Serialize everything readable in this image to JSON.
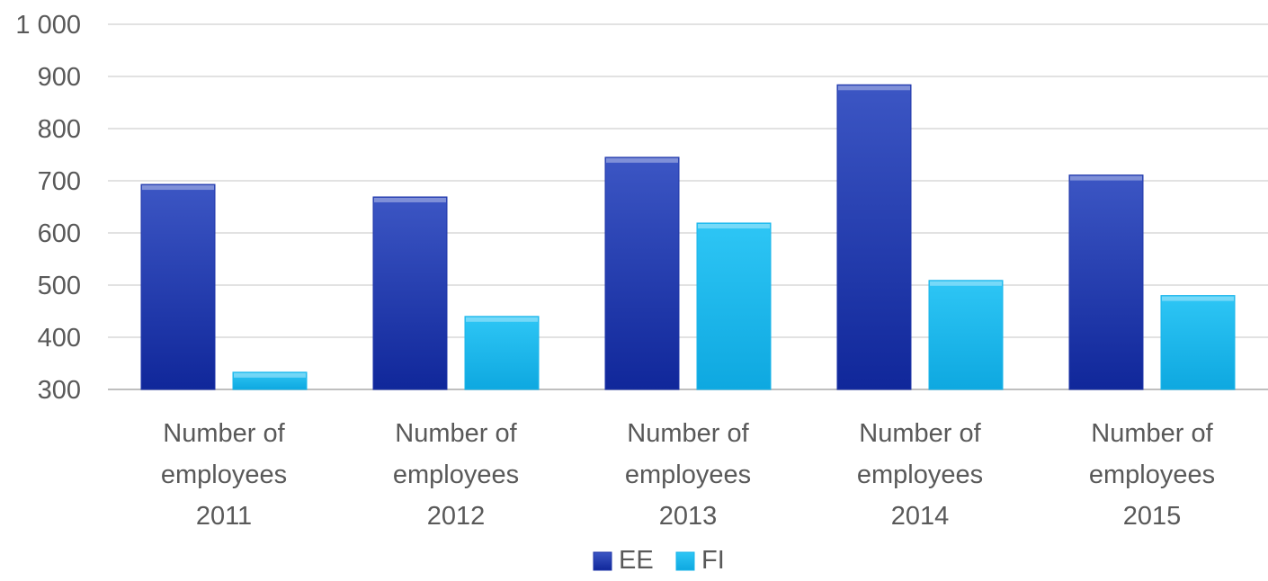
{
  "chart_data": {
    "type": "bar",
    "title": "",
    "xlabel": "",
    "ylabel": "",
    "categories": [
      [
        "Number of",
        "employees",
        "2011"
      ],
      [
        "Number of",
        "employees",
        "2012"
      ],
      [
        "Number of",
        "employees",
        "2013"
      ],
      [
        "Number of",
        "employees",
        "2014"
      ],
      [
        "Number of",
        "employees",
        "2015"
      ]
    ],
    "series": [
      {
        "name": "EE",
        "color": "#1f36a8",
        "values": [
          693,
          669,
          745,
          884,
          711
        ]
      },
      {
        "name": "FI",
        "color": "#19b4ea",
        "values": [
          333,
          440,
          619,
          509,
          480
        ]
      }
    ],
    "ylim": [
      300,
      1000
    ],
    "yticks": [
      300,
      400,
      500,
      600,
      700,
      800,
      900,
      1000
    ],
    "ytick_labels": [
      "300",
      "400",
      "500",
      "600",
      "700",
      "800",
      "900",
      "1 000"
    ],
    "grid": true,
    "legend": "bottom-center"
  }
}
